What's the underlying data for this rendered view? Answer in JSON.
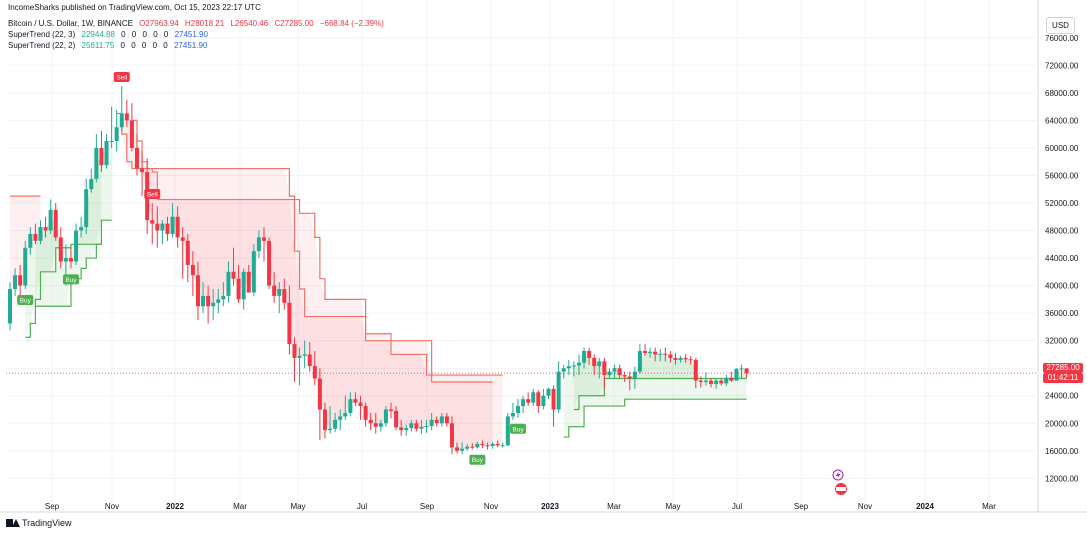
{
  "header": {
    "published": "IncomeSharks published on TradingView.com, Oct 15, 2023 22:17 UTC",
    "symbol": "Bitcoin / U.S. Dollar, 1W, BINANCE",
    "ohlc": [
      "O27963.94",
      "H28018.21",
      "L26540.46",
      "C27285.00",
      "−668.84 (−2.39%)"
    ],
    "st1": {
      "name": "SuperTrend (22, 3)",
      "values": [
        "22944.88",
        "0",
        "0",
        "0",
        "0",
        "0",
        "27451.90"
      ]
    },
    "st2": {
      "name": "SuperTrend (22, 2)",
      "values": [
        "25611.75",
        "0",
        "0",
        "0",
        "0",
        "0",
        "27451.90"
      ]
    }
  },
  "currency_button": "USD",
  "logo_text": "TradingView",
  "price_tag": {
    "price": "27285.00",
    "countdown": "01:42:11"
  },
  "colors": {
    "up": "#22ab94",
    "down": "#f23645",
    "st_up": "#4caf50",
    "st_down": "#f0736b"
  },
  "chart_data": {
    "type": "candlestick",
    "y_ticks": [
      12000,
      16000,
      20000,
      24000,
      28000,
      32000,
      36000,
      40000,
      44000,
      48000,
      52000,
      56000,
      60000,
      64000,
      68000,
      72000,
      76000
    ],
    "y_tick_labels": [
      "12000.00",
      "16000.00",
      "20000.00",
      "24000.00",
      "28000.00",
      "32000.00",
      "36000.00",
      "40000.00",
      "44000.00",
      "48000.00",
      "52000.00",
      "56000.00",
      "60000.00",
      "64000.00",
      "68000.00",
      "72000.00",
      "76000.00"
    ],
    "x_labels": [
      "Sep",
      "Nov",
      "2022",
      "Mar",
      "May",
      "Jul",
      "Sep",
      "Nov",
      "2023",
      "Mar",
      "May",
      "Jul",
      "Sep",
      "Nov",
      "2024",
      "Mar"
    ],
    "ylim": [
      9000,
      78000
    ],
    "candles_o": [
      34500,
      39500,
      41500,
      40000,
      45500,
      47500,
      46500,
      48500,
      48000,
      51000,
      47000,
      43500,
      44000,
      43500,
      48000,
      48500,
      54000,
      55500,
      60000,
      57500,
      61000,
      61000,
      63000,
      65000,
      64000,
      60000,
      57000,
      56500,
      49500,
      49000,
      48000,
      49000,
      47500,
      50000,
      47000,
      46500,
      43000,
      41500,
      37000,
      38500,
      37000,
      37500,
      38000,
      38500,
      42000,
      41000,
      38000,
      42000,
      39000,
      45000,
      47000,
      46500,
      40000,
      38500,
      39500,
      37500,
      31500,
      29500,
      29800,
      30000,
      28300,
      26500,
      22000,
      19000,
      19200,
      20500,
      21000,
      21500,
      23500,
      23000,
      22500,
      20500,
      20000,
      19500,
      20000,
      22000,
      21800,
      19400,
      19000,
      19300,
      20000,
      19200,
      19500,
      19600,
      20500,
      20000,
      21000,
      20000,
      16500,
      16000,
      16300,
      16600,
      16500,
      17000,
      16800,
      16700,
      17000,
      16800,
      16800,
      21000,
      21500,
      22500,
      23500,
      23000,
      24500,
      22500,
      24000,
      25000,
      22000,
      27500,
      28000,
      28300,
      28400,
      28800,
      30500,
      29500,
      28300,
      29000,
      27000,
      27500,
      28000,
      27000,
      26800,
      26500,
      27500,
      30500,
      30200,
      30400,
      30000,
      30100,
      30000,
      29500,
      29200,
      29500,
      29300,
      29200,
      26200,
      26000,
      26200,
      25700,
      26200,
      25800,
      26600,
      26200,
      27900,
      27963
    ],
    "candles_c": [
      39500,
      41500,
      40000,
      45500,
      47500,
      46500,
      48500,
      48000,
      51000,
      47000,
      43500,
      44000,
      43500,
      48000,
      48500,
      54000,
      55500,
      60000,
      57500,
      61000,
      61000,
      63000,
      65000,
      64000,
      60000,
      57000,
      56500,
      49500,
      49000,
      48000,
      49000,
      47500,
      50000,
      47000,
      46500,
      43000,
      41500,
      37000,
      38500,
      37000,
      37500,
      38000,
      38500,
      42000,
      41000,
      38000,
      42000,
      39000,
      45000,
      47000,
      46500,
      40000,
      38500,
      39500,
      37500,
      31500,
      29500,
      29800,
      30000,
      28300,
      26500,
      22000,
      19000,
      19200,
      20500,
      21000,
      21500,
      23500,
      23000,
      22500,
      20500,
      20000,
      19500,
      20000,
      22000,
      21800,
      19400,
      19000,
      19300,
      20000,
      19200,
      19500,
      19600,
      20500,
      20000,
      21000,
      20000,
      16500,
      16000,
      16300,
      16600,
      16500,
      17000,
      16800,
      16700,
      17000,
      16800,
      16800,
      21000,
      21500,
      22500,
      23500,
      23000,
      24500,
      22500,
      24000,
      25000,
      22000,
      27500,
      28000,
      28300,
      28400,
      28800,
      30500,
      29500,
      28300,
      29000,
      27000,
      27500,
      28000,
      27000,
      26800,
      26500,
      27500,
      30500,
      30200,
      30400,
      30000,
      30100,
      30000,
      29500,
      29200,
      29500,
      29300,
      29200,
      26200,
      26000,
      26200,
      25700,
      26200,
      25800,
      26600,
      26200,
      27900,
      27963,
      27285
    ],
    "candles_h": [
      40500,
      42500,
      43000,
      46500,
      48500,
      49000,
      49500,
      50000,
      52500,
      52000,
      48500,
      46000,
      45500,
      49000,
      50000,
      55500,
      57000,
      62000,
      62500,
      62000,
      66000,
      65500,
      69000,
      67000,
      66500,
      62000,
      59500,
      58500,
      52000,
      51500,
      49500,
      50000,
      52000,
      51500,
      48500,
      47500,
      45000,
      43500,
      40500,
      40000,
      39500,
      39500,
      40500,
      43500,
      45500,
      43000,
      42500,
      43000,
      46000,
      48000,
      48500,
      47000,
      42000,
      40500,
      41000,
      40000,
      32500,
      31000,
      32000,
      31800,
      30500,
      28000,
      23000,
      22500,
      21500,
      22000,
      24000,
      24500,
      24500,
      24000,
      23000,
      21500,
      21500,
      20500,
      22500,
      23000,
      22500,
      20500,
      19800,
      20500,
      20500,
      20500,
      20500,
      21500,
      21000,
      21500,
      21500,
      21000,
      17200,
      17200,
      17000,
      17100,
      17300,
      17500,
      17200,
      17300,
      17500,
      17200,
      21500,
      23000,
      23500,
      24000,
      24500,
      25000,
      24800,
      25000,
      25200,
      25500,
      29000,
      28500,
      29200,
      29000,
      30000,
      31000,
      31000,
      30000,
      29500,
      29500,
      28000,
      28500,
      28500,
      27500,
      27500,
      28200,
      31500,
      31500,
      31000,
      31000,
      30800,
      31000,
      30500,
      30200,
      29800,
      30000,
      29800,
      29500,
      26800,
      27400,
      26600,
      26600,
      26500,
      27000,
      27500,
      28000,
      28500,
      28018
    ],
    "candles_l": [
      33500,
      38500,
      38500,
      39500,
      44500,
      46000,
      46000,
      47000,
      47500,
      46500,
      42500,
      40000,
      42500,
      43000,
      47000,
      47500,
      53500,
      55000,
      56500,
      57000,
      60000,
      59500,
      62500,
      63000,
      59500,
      56000,
      53000,
      47500,
      46000,
      45500,
      46000,
      46500,
      47000,
      45500,
      41000,
      40500,
      38500,
      35000,
      36000,
      34500,
      35000,
      36000,
      37000,
      37500,
      40000,
      37500,
      36500,
      39000,
      38500,
      44000,
      43500,
      39500,
      37500,
      36000,
      36500,
      30000,
      26000,
      25500,
      28000,
      27500,
      25500,
      17600,
      17800,
      18500,
      18700,
      19000,
      20500,
      21000,
      22500,
      20500,
      19500,
      19000,
      18500,
      18800,
      19500,
      20700,
      19000,
      18200,
      18200,
      18800,
      18800,
      18500,
      18600,
      19000,
      19500,
      19500,
      19500,
      15500,
      15600,
      15500,
      16000,
      16200,
      16300,
      16400,
      16200,
      16300,
      16500,
      16500,
      16700,
      20500,
      20800,
      21500,
      22500,
      22500,
      21500,
      22000,
      23500,
      19500,
      21500,
      26500,
      27000,
      26800,
      27000,
      28000,
      28500,
      27000,
      26500,
      25000,
      26500,
      26500,
      26600,
      26000,
      24800,
      25000,
      27200,
      29800,
      29500,
      29000,
      29000,
      29000,
      28800,
      28500,
      28800,
      28800,
      28500,
      25100,
      25200,
      25500,
      25200,
      25000,
      25500,
      25400,
      26000,
      26400,
      26500,
      26540
    ],
    "supertrend_22_3": {
      "up": [
        {
          "from": 3,
          "to": 18,
          "values": [
            32500,
            34500,
            38000,
            42000,
            42000,
            42000,
            45500,
            45500,
            45500,
            46000,
            46000,
            46000,
            46000,
            46000,
            46000,
            46000
          ]
        },
        {
          "from": 95,
          "to": 145,
          "values": [
            null,
            null,
            null,
            null,
            null,
            null,
            null,
            null,
            null,
            null,
            null,
            null,
            null,
            null,
            18000,
            19500,
            19500,
            19500,
            22500,
            22500,
            22500,
            22500,
            22500,
            22500,
            22500,
            22500,
            23500,
            23500,
            23500,
            23500,
            23500,
            23500,
            23500,
            23500,
            23500,
            23500,
            23500,
            23500,
            23500,
            23500,
            23500,
            23500,
            23500,
            23500,
            23500,
            23500,
            23500,
            23500,
            23500,
            23500,
            23500
          ]
        }
      ],
      "down": [
        {
          "from": 0,
          "to": 6,
          "values": [
            53000,
            53000,
            53000,
            53000,
            53000,
            53000,
            53000
          ]
        },
        {
          "from": 21,
          "to": 95,
          "values": [
            65000,
            62000,
            58000,
            57000,
            57000,
            57000,
            57000,
            57000,
            57000,
            57000,
            57000,
            57000,
            57000,
            57000,
            57000,
            57000,
            57000,
            57000,
            57000,
            57000,
            57000,
            57000,
            57000,
            57000,
            57000,
            57000,
            57000,
            57000,
            57000,
            57000,
            57000,
            57000,
            57000,
            57000,
            53000,
            45000,
            39500,
            35500,
            35500,
            35500,
            35500,
            35500,
            35500,
            35500,
            35500,
            35500,
            35500,
            35500,
            35500,
            32000,
            32000,
            32000,
            32000,
            32000,
            32000,
            32000,
            32000,
            32000,
            32000,
            32000,
            32000,
            32000,
            26000,
            26000,
            26000,
            26000,
            26000,
            26000,
            26000,
            26000,
            26000,
            26000,
            26000,
            26000,
            26000
          ]
        }
      ]
    },
    "supertrend_22_2": {
      "up": [
        {
          "from": 0,
          "to": 20,
          "values": [
            null,
            null,
            null,
            null,
            null,
            37000,
            37000,
            37000,
            37000,
            37000,
            37000,
            37000,
            41000,
            41000,
            42500,
            44000,
            44000,
            46000,
            49500,
            49500,
            49500
          ]
        },
        {
          "from": 97,
          "to": 145,
          "values": [
            null,
            null,
            null,
            null,
            null,
            null,
            null,
            null,
            null,
            null,
            null,
            null,
            null,
            null,
            22000,
            24000,
            24000,
            24000,
            24000,
            24000,
            26500,
            26500,
            26500,
            26500,
            26500,
            26500,
            26500,
            26500,
            26500,
            26500,
            26500,
            26500,
            26500,
            26500,
            26500,
            26500,
            26500,
            26500,
            26500,
            26500,
            26500,
            26500,
            26500,
            26500,
            26500,
            26500,
            26500,
            26500,
            26500
          ]
        }
      ],
      "down": [
        {
          "from": 24,
          "to": 97,
          "values": [
            64000,
            61000,
            58000,
            57000,
            56500,
            52500,
            52500,
            52500,
            52500,
            52500,
            52500,
            52500,
            52500,
            52500,
            52500,
            52500,
            52500,
            52500,
            52500,
            52500,
            52500,
            52500,
            52500,
            52500,
            52500,
            52500,
            52500,
            52500,
            52500,
            52500,
            52500,
            52500,
            52500,
            50500,
            50500,
            50500,
            47000,
            41000,
            38000,
            38000,
            38000,
            38000,
            38000,
            38000,
            38000,
            38000,
            33000,
            33000,
            33000,
            33000,
            33000,
            30000,
            30000,
            30000,
            30000,
            30000,
            30000,
            30000,
            27000,
            27000,
            27000,
            27000,
            27000,
            27000,
            27000,
            27000,
            27000,
            27000,
            27000,
            27000,
            27000,
            27000,
            27000,
            27000
          ]
        }
      ]
    },
    "signals": [
      {
        "label": "Sell",
        "type": "sell",
        "index": 22
      },
      {
        "label": "Sell",
        "type": "sell",
        "index": 28
      },
      {
        "label": "Buy",
        "type": "buy",
        "index": 3
      },
      {
        "label": "Buy",
        "type": "buy",
        "index": 12
      },
      {
        "label": "Buy",
        "type": "buy",
        "index": 92
      },
      {
        "label": "Buy",
        "type": "buy",
        "index": 100
      }
    ],
    "last_price": 27285
  }
}
